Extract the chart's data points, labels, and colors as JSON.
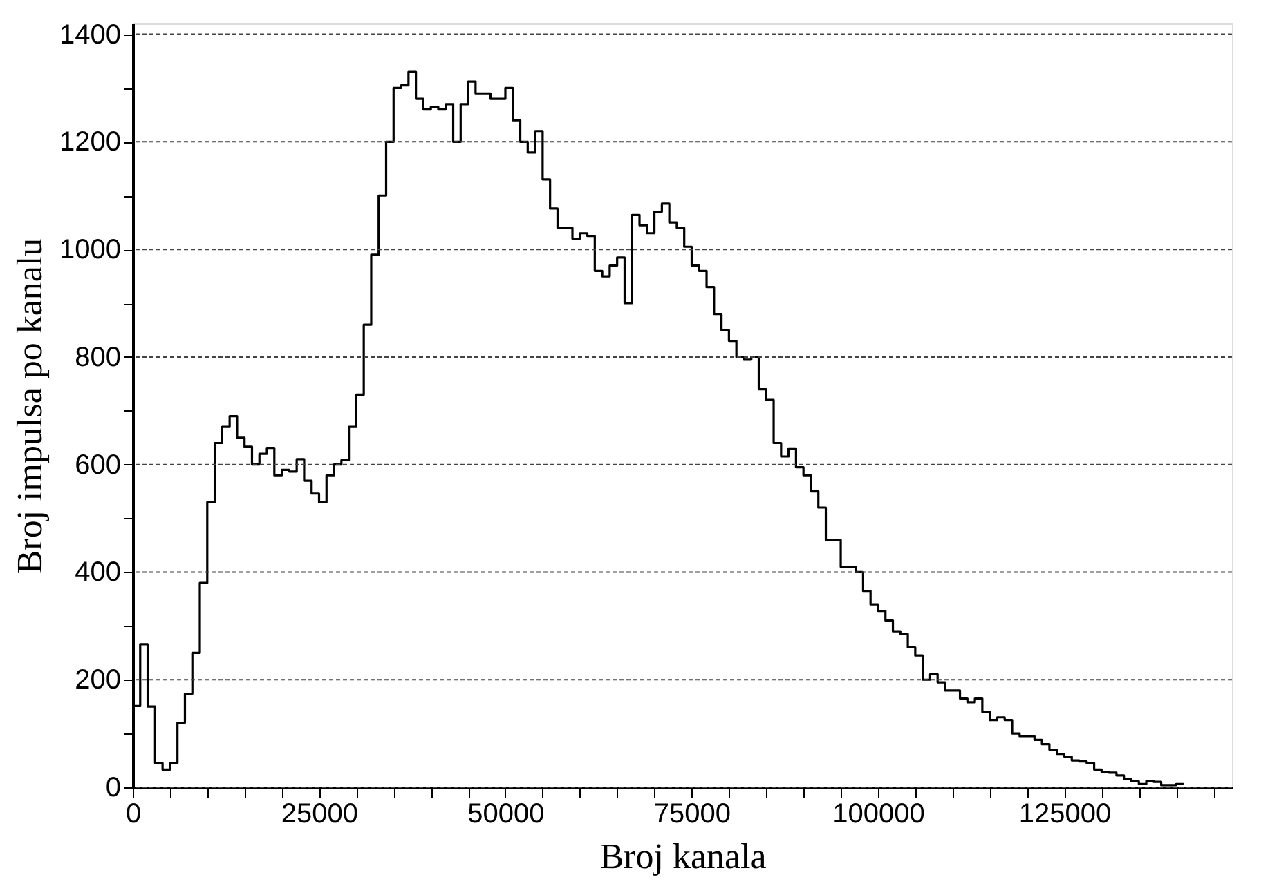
{
  "chart_data": {
    "type": "histogram",
    "xlabel": "Broj kanala",
    "ylabel": "Broj impulsa po kanalu",
    "bins": [
      0,
      1000,
      2000,
      3000,
      4000,
      5000,
      6000,
      7000,
      8000,
      9000,
      10000,
      11000,
      12000,
      13000,
      14000,
      15000,
      16000,
      17000,
      18000,
      19000,
      20000,
      21000,
      22000,
      23000,
      24000,
      25000,
      26000,
      27000,
      28000,
      29000,
      30000,
      31000,
      32000,
      33000,
      34000,
      35000,
      36000,
      37000,
      38000,
      39000,
      40000,
      41000,
      42000,
      43000,
      44000,
      45000,
      46000,
      47000,
      48000,
      49000,
      50000,
      51000,
      52000,
      53000,
      54000,
      55000,
      56000,
      57000,
      58000,
      59000,
      60000,
      61000,
      62000,
      63000,
      64000,
      65000,
      66000,
      67000,
      68000,
      69000,
      70000,
      71000,
      72000,
      73000,
      74000,
      75000,
      76000,
      77000,
      78000,
      79000,
      80000,
      81000,
      82000,
      83000,
      84000,
      85000,
      86000,
      87000,
      88000,
      89000,
      90000,
      91000,
      92000,
      93000,
      94000,
      95000,
      96000,
      97000,
      98000,
      99000,
      100000,
      101000,
      102000,
      103000,
      104000,
      105000,
      106000,
      107000,
      108000,
      109000,
      110000,
      111000,
      112000,
      113000,
      114000,
      115000,
      116000,
      117000,
      118000,
      119000,
      120000,
      121000,
      122000,
      123000,
      124000,
      125000,
      126000,
      127000,
      128000,
      129000,
      130000,
      131000,
      132000,
      133000,
      134000,
      135000,
      136000,
      137000,
      138000,
      139000,
      140000,
      141000
    ],
    "values": [
      151,
      266,
      150,
      45,
      33,
      45,
      120,
      174,
      250,
      380,
      530,
      640,
      670,
      690,
      650,
      633,
      600,
      620,
      631,
      580,
      590,
      587,
      610,
      570,
      546,
      530,
      580,
      600,
      608,
      670,
      730,
      860,
      990,
      1100,
      1200,
      1300,
      1305,
      1330,
      1280,
      1260,
      1265,
      1260,
      1270,
      1200,
      1270,
      1312,
      1290,
      1290,
      1280,
      1280,
      1300,
      1240,
      1200,
      1180,
      1220,
      1130,
      1076,
      1040,
      1040,
      1020,
      1030,
      1025,
      960,
      950,
      970,
      985,
      900,
      1064,
      1045,
      1030,
      1070,
      1085,
      1050,
      1040,
      1005,
      970,
      960,
      930,
      880,
      850,
      830,
      800,
      795,
      800,
      740,
      720,
      640,
      615,
      630,
      595,
      580,
      550,
      520,
      460,
      460,
      410,
      410,
      400,
      365,
      340,
      328,
      310,
      290,
      285,
      260,
      245,
      200,
      210,
      195,
      180,
      180,
      165,
      158,
      165,
      140,
      125,
      130,
      125,
      100,
      95,
      95,
      88,
      80,
      70,
      62,
      57,
      50,
      48,
      45,
      33,
      28,
      27,
      22,
      15,
      11,
      6,
      12,
      10,
      4,
      4,
      6
    ],
    "color": "#000000",
    "xlim": [
      0,
      147500
    ],
    "xticks": [
      0,
      {
        "value": 5000,
        "label": null
      },
      {
        "value": 10000,
        "label": null
      },
      {
        "value": 15000,
        "label": null
      },
      {
        "value": 20000,
        "label": null
      },
      25000,
      {
        "value": 30000,
        "label": null
      },
      {
        "value": 35000,
        "label": null
      },
      {
        "value": 40000,
        "label": null
      },
      {
        "value": 45000,
        "label": null
      },
      50000,
      {
        "value": 55000,
        "label": null
      },
      {
        "value": 60000,
        "label": null
      },
      {
        "value": 65000,
        "label": null
      },
      {
        "value": 70000,
        "label": null
      },
      75000,
      {
        "value": 80000,
        "label": null
      },
      {
        "value": 85000,
        "label": null
      },
      {
        "value": 90000,
        "label": null
      },
      {
        "value": 95000,
        "label": null
      },
      100000,
      {
        "value": 105000,
        "label": null
      },
      {
        "value": 110000,
        "label": null
      },
      {
        "value": 115000,
        "label": null
      },
      {
        "value": 120000,
        "label": null
      },
      125000,
      {
        "value": 130000,
        "label": null
      },
      {
        "value": 135000,
        "label": null
      },
      {
        "value": 140000,
        "label": null
      },
      {
        "value": 145000,
        "label": null
      }
    ],
    "ylim": [
      0,
      1420
    ],
    "yticks": [
      0,
      {
        "value": 100,
        "label": null
      },
      200,
      {
        "value": 300,
        "label": null
      },
      400,
      {
        "value": 500,
        "label": null
      },
      600,
      {
        "value": 700,
        "label": null
      },
      800,
      {
        "value": 900,
        "label": null
      },
      1000,
      {
        "value": 1100,
        "label": null
      },
      1200,
      {
        "value": 1300,
        "label": null
      },
      1400
    ],
    "grid": "y",
    "line_style": "solid"
  }
}
